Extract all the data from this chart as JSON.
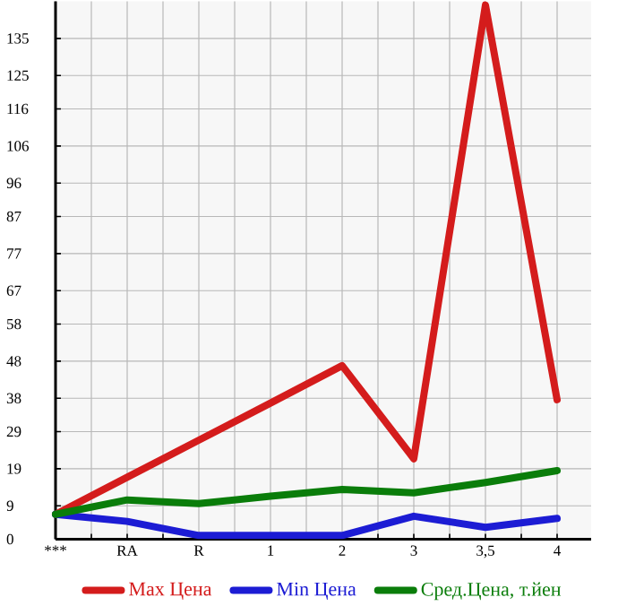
{
  "chart_data": {
    "type": "line",
    "categories": [
      "***",
      "RA",
      "R",
      "1",
      "2",
      "3",
      "3,5",
      "4"
    ],
    "series": [
      {
        "name": "Max Цена",
        "color": "#d41c1c",
        "values": [
          6.7,
          16.7,
          26.7,
          36.7,
          46.8,
          21.7,
          144,
          37.6
        ]
      },
      {
        "name": "Min Цена",
        "color": "#1c1cd4",
        "values": [
          6.7,
          4.8,
          1,
          1,
          1,
          6.2,
          3.2,
          5.6
        ]
      },
      {
        "name": "Сред.Цена, т.йен",
        "color": "#0a7d0a",
        "values": [
          6.7,
          10.6,
          9.6,
          11.6,
          13.4,
          12.5,
          15.3,
          18.5
        ]
      }
    ],
    "ylim": [
      0,
      145
    ],
    "yticks": [
      0,
      9,
      19,
      29,
      38,
      48,
      58,
      67,
      77,
      87,
      96,
      106,
      116,
      125,
      135
    ],
    "grid": true,
    "legend": "bottom"
  }
}
